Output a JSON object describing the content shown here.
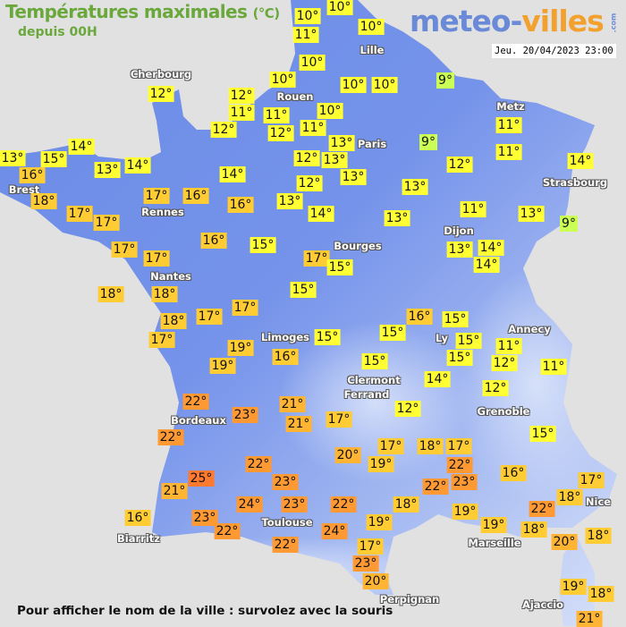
{
  "header": {
    "title": "Températures maximales",
    "unit": "(°C)",
    "subtitle": "depuis 00H",
    "logo": {
      "part1": "meteo-",
      "part2": "villes",
      "suffix": ".com"
    },
    "datetime": "Jeu. 20/04/2023 23:00"
  },
  "footer": {
    "hint": "Pour afficher le nom de la ville : survolez avec la souris"
  },
  "colors": {
    "background": "#e1e1e1",
    "land_dark": "#6b8be6",
    "land_light": "#c6d3f6",
    "title": "#6aa83c",
    "temp_scale": {
      "9": "#ccff55",
      "10-15": "#ffff33",
      "16-19": "#ffcc33",
      "20-21": "#ffb533",
      "22-24": "#ff9933",
      "25": "#ff7a2e"
    }
  },
  "cities": [
    "Cherbourg",
    "Lille",
    "Rouen",
    "Paris",
    "Metz",
    "Strasbourg",
    "Brest",
    "Rennes",
    "Dijon",
    "Bourges",
    "Nantes",
    "Limoges",
    "Annecy",
    "Ly",
    "Clermont",
    "Ferrand",
    "Grenoble",
    "Bordeaux",
    "Toulouse",
    "Biarritz",
    "Nice",
    "Marseille",
    "Perpignan",
    "Ajaccio"
  ],
  "temperatures": [
    "10°",
    "10°",
    "11°",
    "10°",
    "10°",
    "10°",
    "10°",
    "10°",
    "9°",
    "12°",
    "12°",
    "11°",
    "11°",
    "10°",
    "12°",
    "12°",
    "11°",
    "13°",
    "9°",
    "13°",
    "12°",
    "13°",
    "11°",
    "11°",
    "12°",
    "14°",
    "13°",
    "15°",
    "14°",
    "16°",
    "13°",
    "14°",
    "14°",
    "13°",
    "12°",
    "13°",
    "18°",
    "17°",
    "16°",
    "16°",
    "17°",
    "17°",
    "14°",
    "13°",
    "11°",
    "13°",
    "9°",
    "16°",
    "15°",
    "17°",
    "17°",
    "17°",
    "15°",
    "13°",
    "14°",
    "14°",
    "18°",
    "18°",
    "15°",
    "16°",
    "15°",
    "18°",
    "17°",
    "17°",
    "15°",
    "15°",
    "15°",
    "15°",
    "11°",
    "12°",
    "11°",
    "17°",
    "19°",
    "19°",
    "16°",
    "15°",
    "14°",
    "12°",
    "12°",
    "22°",
    "23°",
    "21°",
    "21°",
    "17°",
    "15°",
    "22°",
    "17°",
    "19°",
    "20°",
    "18°",
    "17°",
    "22°",
    "23°",
    "22°",
    "16°",
    "17°",
    "18°",
    "22°",
    "25°",
    "21°",
    "23°",
    "24°",
    "23°",
    "22°",
    "23°",
    "22°",
    "16°",
    "19°",
    "18°",
    "19°",
    "19°",
    "22°",
    "18°",
    "24°",
    "22°",
    "17°",
    "23°",
    "20°",
    "20°",
    "18°",
    "19°",
    "18°",
    "21°"
  ]
}
